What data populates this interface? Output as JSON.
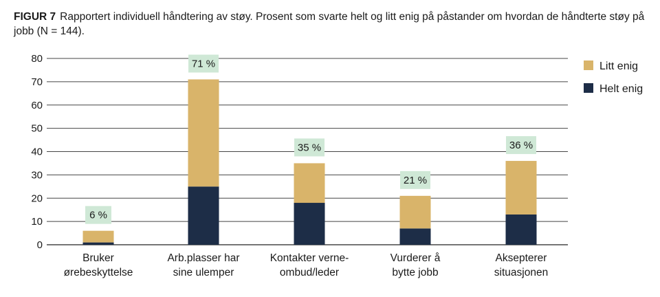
{
  "caption": {
    "figure_label": "FIGUR 7",
    "text": "Rapportert individuell håndtering av støy. Prosent som svarte helt og litt enig på påstander om hvordan de håndterte støy på jobb (N = 144)."
  },
  "colors": {
    "litt": "#D9B46A",
    "helt": "#1D2D47",
    "label_bg": "#CFE8D6",
    "grid": "#444444"
  },
  "chart_data": {
    "type": "bar",
    "stacked": true,
    "title": "Rapportert individuell håndtering av støy. Prosent som svarte helt og litt enig på påstander om hvordan de håndterte støy på jobb (N = 144).",
    "categories": [
      [
        "Bruker",
        "ørebeskyttelse"
      ],
      [
        "Arb.plasser har",
        "sine ulemper"
      ],
      [
        "Kontakter verne-",
        "ombud/leder"
      ],
      [
        "Vurderer å",
        "bytte jobb"
      ],
      [
        "Aksepterer",
        "situasjonen"
      ]
    ],
    "series": [
      {
        "name": "Helt enig",
        "values": [
          1,
          25,
          18,
          7,
          13
        ]
      },
      {
        "name": "Litt enig",
        "values": [
          5,
          46,
          17,
          14,
          23
        ]
      }
    ],
    "totals": [
      "6 %",
      "71 %",
      "35 %",
      "21 %",
      "36 %"
    ],
    "yticks": [
      0,
      10,
      20,
      30,
      40,
      50,
      60,
      70,
      80
    ],
    "ylim": [
      0,
      80
    ],
    "grid": true,
    "legend": {
      "position": "top-right",
      "items": [
        {
          "label": "Litt enig",
          "color": "#D9B46A"
        },
        {
          "label": "Helt enig",
          "color": "#1D2D47"
        }
      ]
    }
  }
}
